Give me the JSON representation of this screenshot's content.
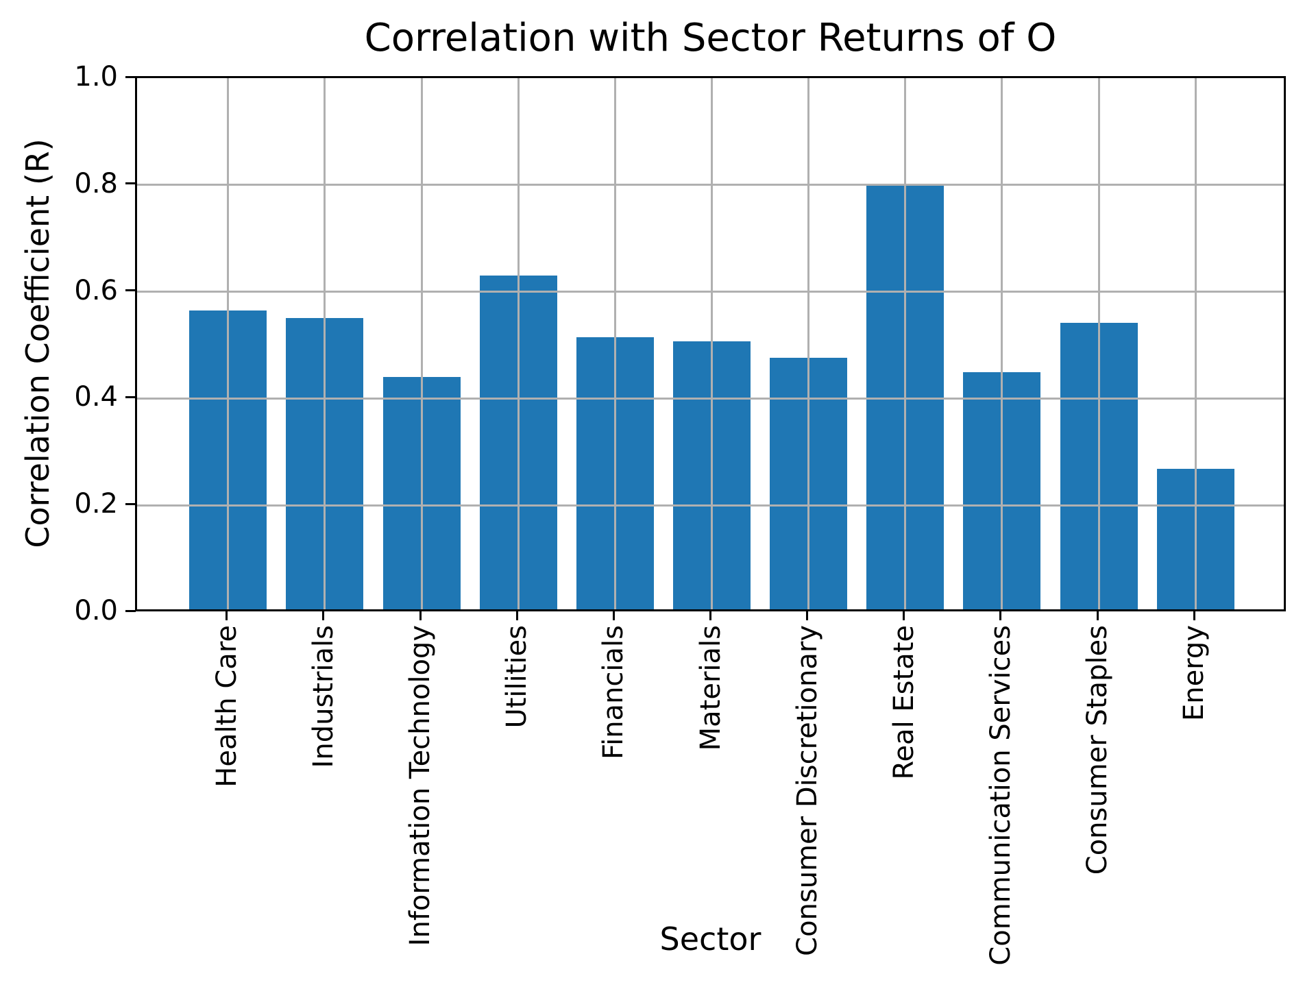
{
  "title": "Correlation with Sector Returns of O",
  "chart_data": {
    "type": "bar",
    "title": "Correlation with Sector Returns of O",
    "xlabel": "Sector",
    "ylabel": "Correlation Coefficient (R)",
    "categories": [
      "Health Care",
      "Industrials",
      "Information Technology",
      "Utilities",
      "Financials",
      "Materials",
      "Consumer Discretionary",
      "Real Estate",
      "Communication Services",
      "Consumer Staples",
      "Energy"
    ],
    "values": [
      0.56,
      0.545,
      0.435,
      0.625,
      0.509,
      0.502,
      0.471,
      0.797,
      0.444,
      0.537,
      0.263
    ],
    "ylim": [
      0.0,
      1.0
    ],
    "yticks": [
      0.0,
      0.2,
      0.4,
      0.6,
      0.8,
      1.0
    ],
    "ytick_labels": [
      "0.0",
      "0.2",
      "0.4",
      "0.6",
      "0.8",
      "1.0"
    ],
    "grid": true,
    "legend": false,
    "bar_color": "#1f77b4",
    "grid_color": "#b0b0b0",
    "axis_color": "#000000"
  }
}
